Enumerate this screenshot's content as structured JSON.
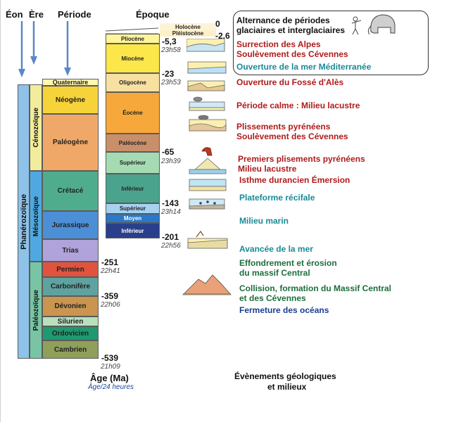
{
  "headers": {
    "eon": "Éon",
    "era": "Ère",
    "period": "Période",
    "epoch": "Époque"
  },
  "eon": {
    "label": "Phanérozoïque"
  },
  "eras": {
    "cenozoic": "Cénozoïque",
    "mesozoic": "Mésozoïque",
    "paleozoic": "Paléozoïque"
  },
  "periods": {
    "quaternaire": "Quaternaire",
    "neogene": "Néogène",
    "paleogene": "Paléogène",
    "cretace": "Crétacé",
    "jurassique": "Jurassique",
    "trias": "Trias",
    "permien": "Permien",
    "carbonifere": "Carbonifère",
    "devonien": "Dévonien",
    "silurien": "Silurien",
    "ordovicien": "Ordovicien",
    "cambrien": "Cambrien"
  },
  "epochs": {
    "holocene": "Holocène",
    "pleistocene": "Pléistocène",
    "pliocene": "Pliocène",
    "miocene": "Miocène",
    "oligocene": "Oligocène",
    "eocene": "Éocène",
    "paleocene": "Paléocène",
    "superieur_cret": "Supérieur",
    "inferieur_cret": "Inférieur",
    "superieur_jur": "Supérieur",
    "moyen_jur": "Moyen",
    "inferieur_jur": "Inférieur"
  },
  "ages": {
    "a0": "0",
    "a2_6": "-2.6",
    "a5_3": "-5,3",
    "h5_3": "23h58",
    "a23": "-23",
    "h23": "23h53",
    "a65": "-65",
    "h65": "23h39",
    "a143": "-143",
    "h143": "23h14",
    "a201": "-201",
    "h201": "22h56",
    "a251": "-251",
    "h251": "22h41",
    "a359": "-359",
    "h359": "22h06",
    "a539": "-539",
    "h539": "21h09"
  },
  "footer": {
    "age_label": "Âge (Ma)",
    "age_sub": "Âge/24 heures",
    "events_label_1": "Évènements géologiques",
    "events_label_2": "et milieux"
  },
  "events": {
    "glacial_1": "Alternance de périodes",
    "glacial_2": "glaciaires et interglaciaires",
    "alpes": "Surrection des Alpes",
    "cevennes_1": "Soulèvement des Cévennes",
    "mediterranee": "Ouverture de la mer Méditerranée",
    "fosse_ales": "Ouverture du Fossé d'Alès",
    "lacustre_calme": "Période calme : Milieu lacustre",
    "pyreneens": "Plissements pyrénéens",
    "cevennes_2": "Soulèvement des Cévennes",
    "premiers_plis": "Premiers plisements pyrénéens",
    "milieu_lacustre": "Milieu lacustre",
    "isthme": "Isthme durancien Émersion",
    "plateforme": "Plateforme récifale",
    "marin": "Milieu marin",
    "avancee_mer": "Avancée de la mer",
    "effondrement_1": "Effondrement et érosion",
    "effondrement_2": "du massif Central",
    "collision_1": "Collision, formation du Massif Central",
    "collision_2": "et des Cévennes",
    "fermeture": "Fermeture des océans"
  },
  "colors": {
    "eon": "#8ec2e8",
    "cenozoic": "#f2ec9c",
    "mesozoic": "#4fa9e0",
    "paleozoic": "#79c4a4",
    "quaternaire": "#fff8b0",
    "neogene": "#f7d33a",
    "paleogene": "#f0a868",
    "cretace": "#4fad8e",
    "jurassique": "#4c8fd6",
    "trias": "#b0a3db",
    "permien": "#e0543e",
    "carbonifere": "#5fa3a0",
    "devonien": "#c9954f",
    "silurien": "#b7e0bb",
    "ordovicien": "#1f9970",
    "cambrien": "#8fa05a",
    "holocene": "#fdf3d7",
    "pleistocene": "#fdf0c8",
    "pliocene": "#fff59a",
    "miocene": "#fbe74a",
    "oligocene": "#f7e0a0",
    "eocene": "#f7a83a",
    "paleocene": "#c98f6a",
    "superieur_cret": "#a5dbb3",
    "inferieur_cret": "#4aa38c",
    "superieur_jur": "#a6d2f0",
    "moyen_jur": "#2a78c8",
    "inferieur_jur": "#2a3f8c"
  }
}
